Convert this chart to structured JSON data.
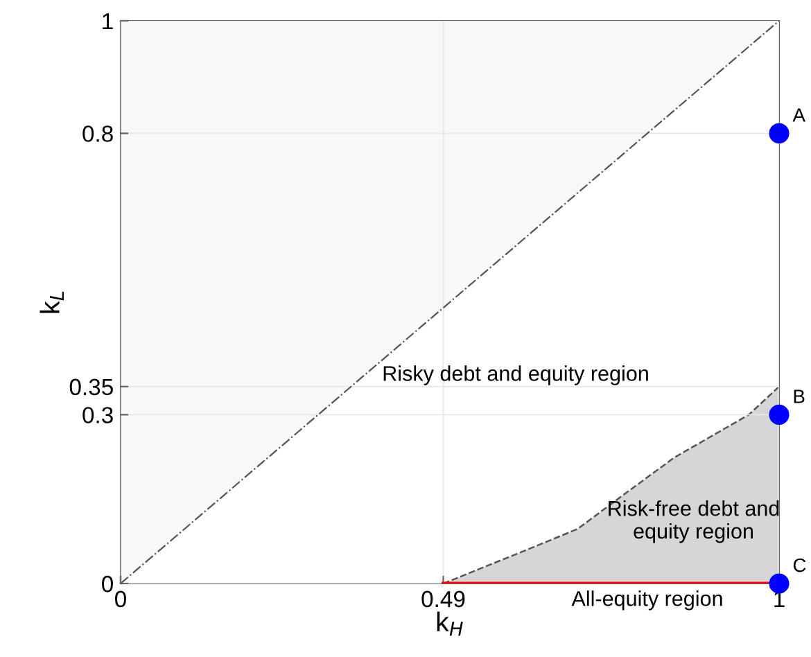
{
  "chart_data": {
    "type": "line",
    "xlabel": "k$_{H}$",
    "ylabel": "k$_{L}$",
    "xlim": [
      0,
      1
    ],
    "ylim": [
      0,
      1
    ],
    "xticks": [
      0,
      0.49,
      1
    ],
    "yticks": [
      0,
      0.3,
      0.35,
      0.8,
      1
    ],
    "grid": true,
    "series": [
      {
        "type": "line",
        "color": "#555555",
        "line_style": "dashdot",
        "x": [
          0,
          1
        ],
        "values": [
          0,
          1
        ],
        "lower": [
          0,
          1
        ],
        "upper": [
          1,
          1
        ]
      },
      {
        "type": "area",
        "color": "#d6d6d6",
        "line_style": "dashed",
        "x": [
          0.49,
          0.617,
          0.694,
          0.764,
          0.841,
          0.954,
          1
        ],
        "values": [
          0,
          0.06,
          0.097,
          0.158,
          0.224,
          0.3,
          0.35
        ]
      },
      {
        "color": "#ff0000",
        "line_style": "solid",
        "x": [
          0.49,
          1
        ],
        "values": [
          0,
          0
        ]
      },
      {
        "type": "scatter",
        "color": "#0000ff",
        "marker": "circle",
        "x": [
          1,
          1,
          1
        ],
        "values": [
          0.8,
          0.3,
          0
        ],
        "value_labels": [
          "A",
          "B",
          "C"
        ]
      }
    ],
    "annotations": [
      "Risky debt and equity region",
      "Risk-free debt and\nequity region",
      "All-equity region"
    ]
  }
}
